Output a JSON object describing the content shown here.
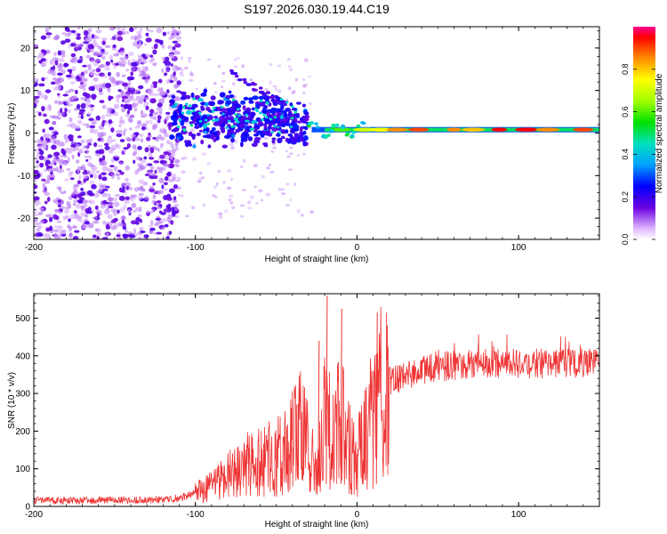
{
  "title": "S197.2026.030.19.44.C19",
  "chart_data": [
    {
      "type": "heatmap",
      "name": "spectrogram",
      "xlabel": "Height of straight line (km)",
      "ylabel": "Frequency (Hz)",
      "xlim": [
        -200,
        150
      ],
      "ylim": [
        -25,
        25
      ],
      "xticks": [
        -200,
        -100,
        0,
        100
      ],
      "yticks": [
        -20,
        -10,
        0,
        10,
        20
      ],
      "colorbar": {
        "label": "Normalized spectral amplitude",
        "range": [
          0,
          1
        ],
        "ticks": [
          0.0,
          0.2,
          0.4,
          0.6,
          0.8
        ]
      },
      "regions": [
        {
          "description": "broadband noise",
          "x_range": [
            -200,
            -115
          ],
          "amplitude": 0.15
        },
        {
          "description": "chirp signal",
          "x_range": [
            -115,
            -30
          ],
          "freq_range": [
            -5,
            14
          ],
          "amplitude": 0.3
        },
        {
          "description": "carrier line",
          "x_range": [
            -30,
            150
          ],
          "freq": 0.8,
          "amplitude": 0.85
        }
      ]
    },
    {
      "type": "line",
      "name": "snr",
      "xlabel": "Height of straight line (km)",
      "ylabel": "SNR (10 * v/v)",
      "xlim": [
        -200,
        150
      ],
      "ylim": [
        0,
        565
      ],
      "xticks": [
        -200,
        -100,
        0,
        100
      ],
      "yticks": [
        0,
        100,
        200,
        300,
        400,
        500
      ],
      "color": "#ee3333",
      "series": [
        {
          "name": "SNR",
          "x": [
            -200,
            -180,
            -160,
            -140,
            -120,
            -110,
            -100,
            -90,
            -80,
            -70,
            -60,
            -50,
            -40,
            -35,
            -30,
            -25,
            -20,
            -15,
            -10,
            -5,
            0,
            5,
            10,
            15,
            20,
            25,
            30,
            40,
            50,
            60,
            70,
            80,
            90,
            100,
            110,
            120,
            130,
            140,
            150
          ],
          "values": [
            15,
            15,
            16,
            17,
            18,
            22,
            35,
            55,
            80,
            110,
            120,
            130,
            170,
            200,
            160,
            80,
            230,
            190,
            230,
            160,
            120,
            200,
            230,
            300,
            330,
            340,
            350,
            360,
            370,
            375,
            378,
            380,
            380,
            380,
            380,
            380,
            380,
            380,
            380
          ]
        }
      ],
      "spikes": [
        {
          "x": -19,
          "value": 560
        },
        {
          "x": -10,
          "value": 525
        },
        {
          "x": 12,
          "value": 515
        },
        {
          "x": -24,
          "value": 440
        }
      ]
    }
  ]
}
